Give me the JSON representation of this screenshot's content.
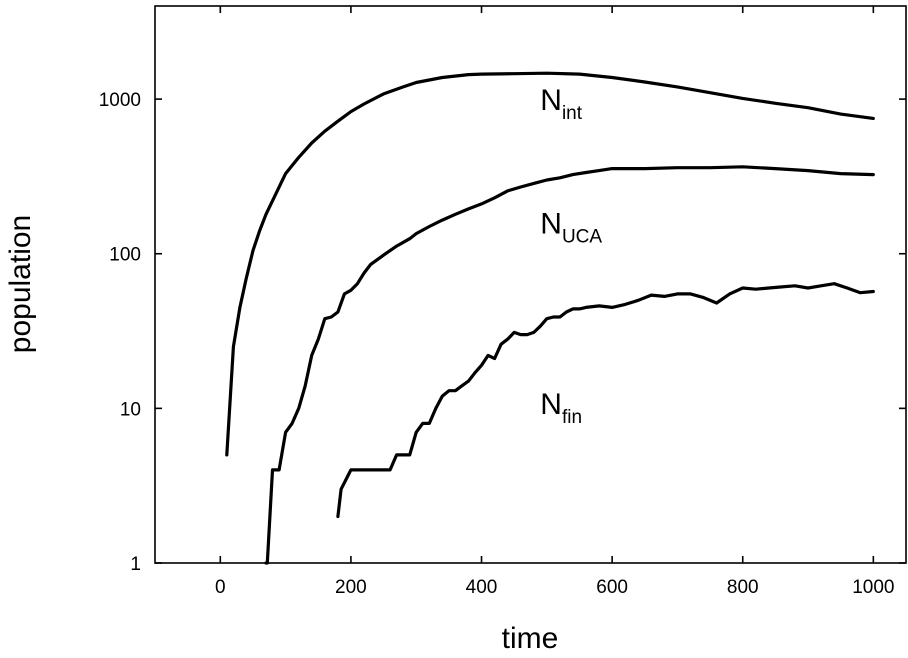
{
  "chart_data": {
    "type": "line",
    "xlabel": "time",
    "ylabel": "population",
    "xlim": [
      -100,
      1050
    ],
    "ylim": [
      1,
      4000
    ],
    "yscale": "log",
    "xticks": [
      0,
      200,
      400,
      600,
      800,
      1000
    ],
    "yticks": [
      1,
      10,
      100,
      1000
    ],
    "xtick_labels": [
      "0",
      "200",
      "400",
      "600",
      "800",
      "1000"
    ],
    "ytick_labels": [
      "1",
      "10",
      "100",
      "1000"
    ],
    "grid": false,
    "legend": "none",
    "series": [
      {
        "name": "N_int",
        "label_main": "N",
        "label_sub": "int",
        "label_pos": [
          490,
          850
        ],
        "x": [
          10,
          20,
          30,
          40,
          50,
          60,
          70,
          80,
          100,
          120,
          140,
          160,
          180,
          200,
          220,
          250,
          280,
          300,
          340,
          380,
          400,
          450,
          500,
          550,
          600,
          650,
          700,
          750,
          800,
          850,
          900,
          950,
          1000
        ],
        "y": [
          5,
          25,
          45,
          70,
          105,
          140,
          180,
          220,
          330,
          420,
          520,
          620,
          720,
          830,
          930,
          1080,
          1200,
          1280,
          1380,
          1440,
          1450,
          1460,
          1470,
          1450,
          1380,
          1290,
          1200,
          1100,
          1010,
          940,
          880,
          800,
          750
        ]
      },
      {
        "name": "N_UCA",
        "label_main": "N",
        "label_sub": "UCA",
        "label_pos": [
          490,
          135
        ],
        "x": [
          70,
          72,
          80,
          90,
          100,
          110,
          120,
          130,
          140,
          150,
          160,
          170,
          180,
          190,
          200,
          210,
          220,
          230,
          250,
          270,
          290,
          300,
          320,
          340,
          360,
          380,
          400,
          420,
          440,
          460,
          480,
          500,
          520,
          540,
          560,
          580,
          600,
          650,
          700,
          750,
          800,
          850,
          900,
          950,
          1000
        ],
        "y": [
          1,
          1,
          4,
          4,
          7,
          8,
          10,
          14,
          22,
          28,
          38,
          39,
          42,
          55,
          58,
          64,
          75,
          85,
          98,
          112,
          125,
          135,
          150,
          165,
          180,
          195,
          210,
          230,
          255,
          270,
          285,
          300,
          310,
          325,
          335,
          345,
          355,
          355,
          360,
          360,
          365,
          355,
          345,
          330,
          325
        ]
      },
      {
        "name": "N_fin",
        "label_main": "N",
        "label_sub": "fin",
        "label_pos": [
          490,
          9.2
        ],
        "x": [
          180,
          185,
          200,
          220,
          240,
          260,
          270,
          280,
          290,
          300,
          310,
          320,
          330,
          340,
          350,
          360,
          370,
          380,
          390,
          400,
          410,
          420,
          430,
          440,
          450,
          460,
          470,
          480,
          490,
          500,
          510,
          520,
          530,
          540,
          550,
          560,
          580,
          600,
          620,
          640,
          660,
          680,
          700,
          720,
          740,
          760,
          780,
          800,
          820,
          840,
          860,
          880,
          900,
          920,
          940,
          960,
          980,
          1000
        ],
        "y": [
          2,
          3,
          4,
          4,
          4,
          4,
          5,
          5,
          5,
          7,
          8,
          8,
          10,
          12,
          13,
          13,
          14,
          15,
          17,
          19,
          22,
          21,
          26,
          28,
          31,
          30,
          30,
          31,
          34,
          38,
          39,
          39,
          42,
          44,
          44,
          45,
          46,
          45,
          47,
          50,
          54,
          53,
          55,
          55,
          52,
          48,
          55,
          60,
          59,
          60,
          61,
          62,
          60,
          62,
          64,
          60,
          56,
          57
        ]
      }
    ]
  }
}
